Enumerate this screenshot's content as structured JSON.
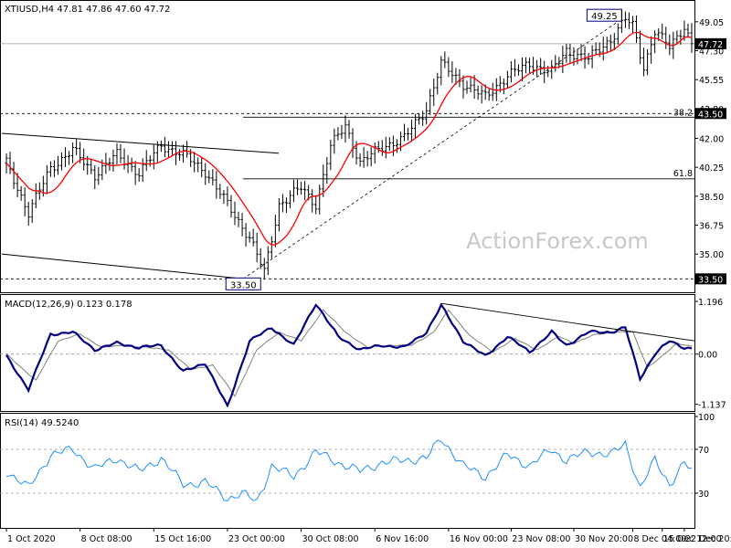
{
  "chart_data": [
    {
      "type": "candlestick",
      "title": "XTIUSD,H4  47.81 47.86 47.60 47.72",
      "watermark": "ActionForex.com",
      "ylim": [
        32.8,
        50.2
      ],
      "yticks": [
        49.05,
        47.3,
        45.55,
        43.8,
        42.0,
        40.25,
        38.5,
        36.75,
        35.0
      ],
      "ytick_labels": [
        "49.05",
        "47.30",
        "45.55",
        "43.80",
        "42.00",
        "40.25",
        "38.50",
        "36.75",
        "35.00"
      ],
      "current_price": {
        "value": 47.72,
        "label": "47.72",
        "color": "#808080"
      },
      "horizontal_levels": [
        {
          "value": 43.5,
          "label": "43.50",
          "left_label": "38.2",
          "color": "#000000"
        },
        {
          "value": 33.5,
          "label": "33.50",
          "color": "#000000"
        }
      ],
      "fib_levels": [
        {
          "value": 39.55,
          "label": "61.8"
        }
      ],
      "annotations": [
        {
          "label": "49.25",
          "value": 49.25
        },
        {
          "label": "33.50",
          "value": 33.5
        }
      ],
      "moving_average_color": "#ff0000",
      "candle_color": "#000000",
      "anchors": [
        [
          0,
          40.5
        ],
        [
          6,
          37.5
        ],
        [
          12,
          40.2
        ],
        [
          18,
          41.3
        ],
        [
          24,
          39.8
        ],
        [
          30,
          41.0
        ],
        [
          36,
          39.9
        ],
        [
          42,
          41.6
        ],
        [
          48,
          41.0
        ],
        [
          54,
          40.0
        ],
        [
          60,
          38.0
        ],
        [
          66,
          36.0
        ],
        [
          70,
          33.9
        ],
        [
          74,
          38.0
        ],
        [
          80,
          39.0
        ],
        [
          84,
          38.0
        ],
        [
          88,
          41.5
        ],
        [
          92,
          42.8
        ],
        [
          96,
          40.5
        ],
        [
          102,
          41.5
        ],
        [
          108,
          42.0
        ],
        [
          114,
          43.8
        ],
        [
          118,
          46.5
        ],
        [
          124,
          45.3
        ],
        [
          130,
          44.5
        ],
        [
          136,
          45.8
        ],
        [
          142,
          46.5
        ],
        [
          148,
          46.0
        ],
        [
          152,
          47.3
        ],
        [
          158,
          46.8
        ],
        [
          164,
          48.0
        ],
        [
          168,
          49.2
        ],
        [
          170,
          48.8
        ],
        [
          173,
          46.3
        ],
        [
          176,
          48.5
        ],
        [
          180,
          47.5
        ],
        [
          184,
          48.8
        ],
        [
          186,
          47.72
        ]
      ],
      "candle_count": 187
    },
    {
      "type": "line",
      "title": "MACD(12,26,9) 0.123 0.178",
      "ylim": [
        -1.25,
        1.3
      ],
      "yticks": [
        1.196,
        0.0,
        -1.137
      ],
      "ytick_labels": [
        "1.196",
        "0.00",
        "-1.137"
      ],
      "series": [
        {
          "name": "MACD",
          "color": "#000080",
          "anchors": [
            [
              0,
              -0.05
            ],
            [
              6,
              -0.8
            ],
            [
              12,
              0.45
            ],
            [
              18,
              0.5
            ],
            [
              24,
              0.1
            ],
            [
              30,
              0.25
            ],
            [
              36,
              0.15
            ],
            [
              42,
              0.2
            ],
            [
              48,
              -0.4
            ],
            [
              54,
              -0.2
            ],
            [
              60,
              -1.2
            ],
            [
              66,
              0.3
            ],
            [
              72,
              0.6
            ],
            [
              78,
              0.2
            ],
            [
              84,
              1.15
            ],
            [
              90,
              0.4
            ],
            [
              96,
              0.1
            ],
            [
              102,
              0.2
            ],
            [
              108,
              0.15
            ],
            [
              114,
              0.5
            ],
            [
              118,
              1.1
            ],
            [
              124,
              0.3
            ],
            [
              130,
              -0.05
            ],
            [
              136,
              0.4
            ],
            [
              142,
              0.05
            ],
            [
              148,
              0.5
            ],
            [
              152,
              0.2
            ],
            [
              158,
              0.5
            ],
            [
              164,
              0.5
            ],
            [
              168,
              0.6
            ],
            [
              172,
              -0.55
            ],
            [
              176,
              0.0
            ],
            [
              180,
              0.3
            ],
            [
              184,
              0.15
            ],
            [
              186,
              0.123
            ]
          ]
        },
        {
          "name": "Signal",
          "color": "#808080",
          "anchors": [
            [
              0,
              0.0
            ],
            [
              8,
              -0.6
            ],
            [
              14,
              0.3
            ],
            [
              20,
              0.45
            ],
            [
              26,
              0.15
            ],
            [
              32,
              0.2
            ],
            [
              38,
              0.15
            ],
            [
              44,
              0.1
            ],
            [
              50,
              -0.35
            ],
            [
              56,
              -0.25
            ],
            [
              62,
              -0.95
            ],
            [
              68,
              0.1
            ],
            [
              74,
              0.5
            ],
            [
              80,
              0.3
            ],
            [
              86,
              1.0
            ],
            [
              92,
              0.5
            ],
            [
              98,
              0.15
            ],
            [
              104,
              0.2
            ],
            [
              110,
              0.2
            ],
            [
              116,
              0.5
            ],
            [
              120,
              1.0
            ],
            [
              126,
              0.4
            ],
            [
              132,
              0.05
            ],
            [
              138,
              0.35
            ],
            [
              144,
              0.1
            ],
            [
              150,
              0.4
            ],
            [
              154,
              0.25
            ],
            [
              160,
              0.45
            ],
            [
              166,
              0.5
            ],
            [
              170,
              0.5
            ],
            [
              174,
              -0.3
            ],
            [
              178,
              -0.05
            ],
            [
              182,
              0.25
            ],
            [
              186,
              0.178
            ]
          ]
        }
      ]
    },
    {
      "type": "line",
      "title": "RSI(14) 49.5240",
      "ylim": [
        0,
        100
      ],
      "yticks": [
        100,
        70,
        30,
        0
      ],
      "ytick_labels": [
        "100",
        "70",
        "30",
        "0"
      ],
      "series": [
        {
          "name": "RSI",
          "color": "#1e90ff",
          "anchors": [
            [
              0,
              50
            ],
            [
              6,
              35
            ],
            [
              12,
              65
            ],
            [
              18,
              70
            ],
            [
              24,
              52
            ],
            [
              30,
              62
            ],
            [
              36,
              50
            ],
            [
              42,
              62
            ],
            [
              48,
              38
            ],
            [
              54,
              40
            ],
            [
              60,
              25
            ],
            [
              64,
              30
            ],
            [
              68,
              22
            ],
            [
              72,
              55
            ],
            [
              78,
              45
            ],
            [
              84,
              68
            ],
            [
              90,
              58
            ],
            [
              96,
              50
            ],
            [
              102,
              58
            ],
            [
              108,
              60
            ],
            [
              114,
              62
            ],
            [
              118,
              80
            ],
            [
              124,
              55
            ],
            [
              130,
              45
            ],
            [
              136,
              65
            ],
            [
              142,
              55
            ],
            [
              148,
              70
            ],
            [
              152,
              60
            ],
            [
              158,
              68
            ],
            [
              164,
              65
            ],
            [
              168,
              75
            ],
            [
              172,
              35
            ],
            [
              176,
              60
            ],
            [
              180,
              38
            ],
            [
              184,
              58
            ],
            [
              186,
              49.5
            ]
          ]
        }
      ]
    }
  ],
  "x_axis_labels": [
    "1 Oct 2020",
    "8 Oct 08:00",
    "15 Oct 16:00",
    "23 Oct 00:00",
    "30 Oct 08:00",
    "6 Nov 16:00",
    "16 Nov 00:00",
    "23 Nov 08:00",
    "30 Nov 20:00",
    "8 Dec 04:00",
    "15 Dec 12:00",
    "22 Dec 20:00"
  ],
  "x_axis_label_index": [
    0,
    20,
    40,
    60,
    80,
    100,
    120,
    137,
    154,
    170,
    178,
    184
  ]
}
